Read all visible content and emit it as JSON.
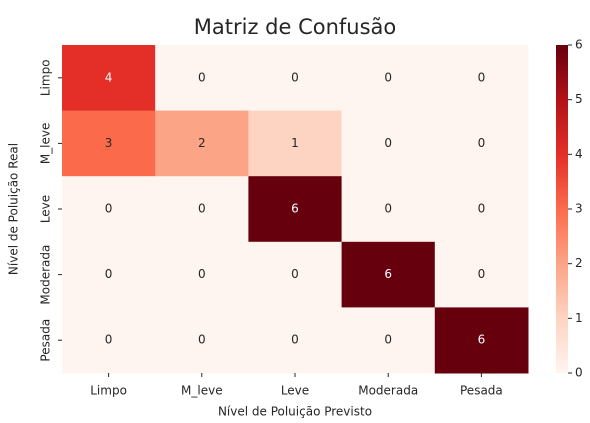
{
  "chart_data": {
    "type": "heatmap",
    "title": "Matriz de Confusão",
    "x_label": "Nível de Poluição Previsto",
    "y_label": "Nível de Poluição Real",
    "x_categories": [
      "Limpo",
      "M_leve",
      "Leve",
      "Moderada",
      "Pesada"
    ],
    "y_categories": [
      "Limpo",
      "M_leve",
      "Leve",
      "Moderada",
      "Pesada"
    ],
    "values": [
      [
        4,
        0,
        0,
        0,
        0
      ],
      [
        3,
        2,
        1,
        0,
        0
      ],
      [
        0,
        0,
        6,
        0,
        0
      ],
      [
        0,
        0,
        0,
        6,
        0
      ],
      [
        0,
        0,
        0,
        0,
        6
      ]
    ],
    "colormap": [
      "#fff5f0",
      "#fdd4c2",
      "#fca486",
      "#fb6b4b",
      "#e32f27",
      "#b11218",
      "#67000d"
    ],
    "clim": [
      0,
      6
    ],
    "cticks": [
      0,
      1,
      2,
      3,
      4,
      5,
      6
    ]
  }
}
